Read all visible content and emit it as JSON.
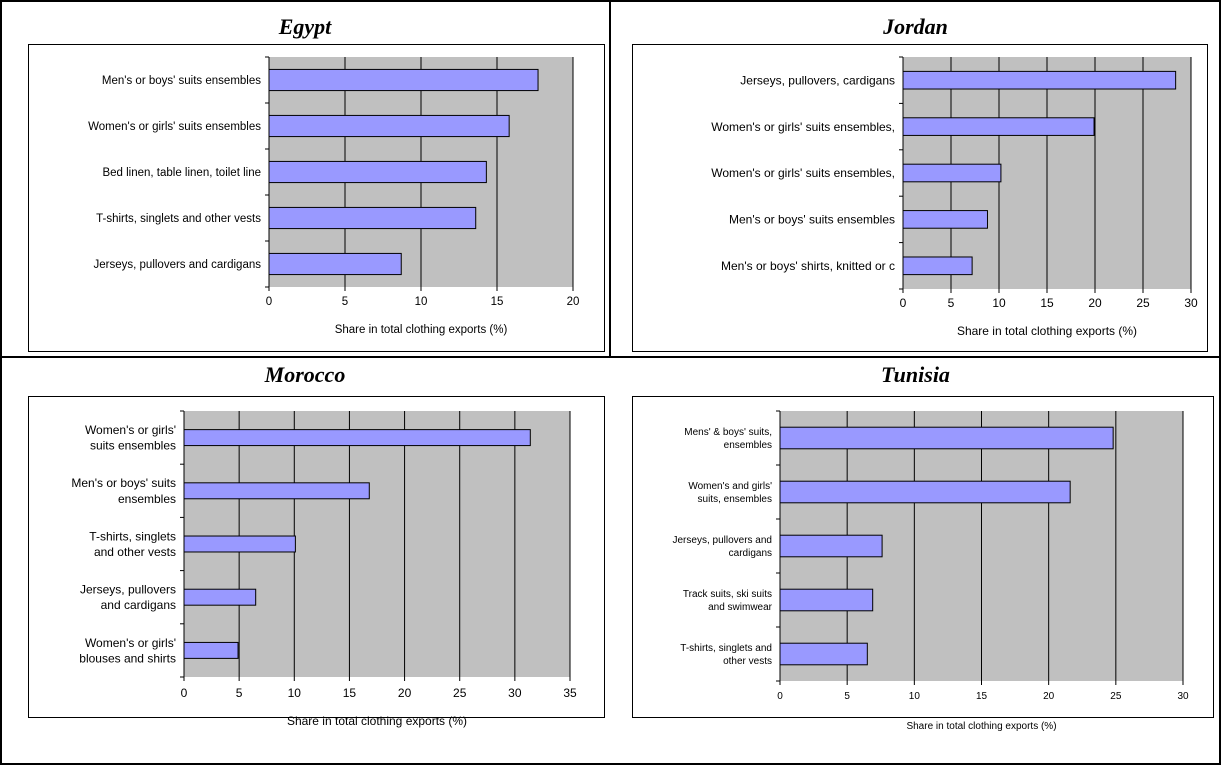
{
  "chart_data": [
    {
      "type": "bar",
      "title": "Egypt",
      "xlabel": "Share in total clothing exports (%)",
      "categories": [
        "Men's or boys' suits ensembles",
        "Women's or girls' suits ensembles",
        "Bed linen, table linen, toilet line",
        "T-shirts, singlets and other vests",
        "Jerseys, pullovers and cardigans"
      ],
      "values": [
        17.7,
        15.8,
        14.3,
        13.6,
        8.7
      ],
      "xlim": [
        0,
        20
      ],
      "xticks": [
        "0",
        "5",
        "10",
        "15",
        "20"
      ],
      "bar_color": "#9999ff",
      "plot_bg": "#c0c0c0"
    },
    {
      "type": "bar",
      "title": "Jordan",
      "xlabel": "Share in total clothing exports (%)",
      "categories": [
        "Jerseys, pullovers, cardigans",
        "Women's or girls' suits ensembles,",
        "Women's or girls' suits ensembles,",
        "Men's or boys' suits ensembles",
        "Men's or boys' shirts, knitted or c"
      ],
      "values": [
        28.4,
        19.9,
        10.2,
        8.8,
        7.2
      ],
      "xlim": [
        0,
        30
      ],
      "xticks": [
        "0",
        "5",
        "10",
        "15",
        "20",
        "25",
        "30"
      ],
      "bar_color": "#9999ff",
      "plot_bg": "#c0c0c0"
    },
    {
      "type": "bar",
      "title": "Morocco",
      "xlabel": "Share in total clothing exports (%)",
      "categories": [
        [
          "Women's or girls'",
          "suits ensembles"
        ],
        [
          "Men's or boys' suits",
          "ensembles"
        ],
        [
          "T-shirts, singlets",
          "and other vests"
        ],
        [
          "Jerseys, pullovers",
          "and cardigans"
        ],
        [
          "Women's or girls'",
          "blouses and shirts"
        ]
      ],
      "values": [
        31.4,
        16.8,
        10.1,
        6.5,
        4.9
      ],
      "xlim": [
        0,
        35
      ],
      "xticks": [
        "0",
        "5",
        "10",
        "15",
        "20",
        "25",
        "30",
        "35"
      ],
      "bar_color": "#9999ff",
      "plot_bg": "#c0c0c0"
    },
    {
      "type": "bar",
      "title": "Tunisia",
      "xlabel": "Share in total clothing exports (%)",
      "categories": [
        [
          "Mens' & boys' suits,",
          "ensembles"
        ],
        [
          "Women's and girls'",
          "suits, ensembles"
        ],
        [
          "Jerseys, pullovers and",
          "cardigans"
        ],
        [
          "Track suits, ski suits",
          "and swimwear"
        ],
        [
          "T-shirts, singlets and",
          "other vests"
        ]
      ],
      "values": [
        24.8,
        21.6,
        7.6,
        6.9,
        6.5
      ],
      "xlim": [
        0,
        30
      ],
      "xticks": [
        "0",
        "5",
        "10",
        "15",
        "20",
        "25",
        "30"
      ],
      "bar_color": "#9999ff",
      "plot_bg": "#c0c0c0"
    }
  ]
}
